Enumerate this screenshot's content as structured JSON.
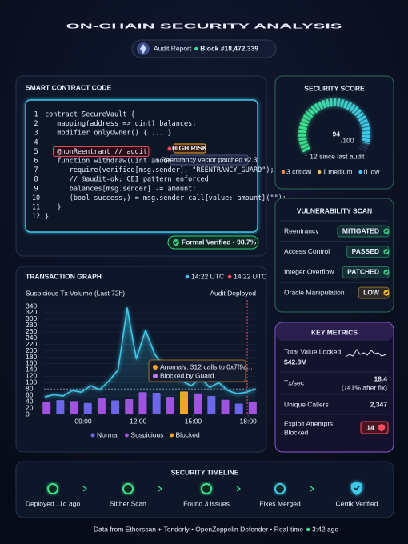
{
  "header": {
    "title": "ON-CHAIN SECURITY ANALYSIS",
    "badge": "Audit Report",
    "block": "Block #18,472,339"
  },
  "code": {
    "title": "SMART CONTRACT CODE",
    "lines": [
      {
        "number": 1,
        "text": "contract SecureVault {"
      },
      {
        "number": 2,
        "text": "   mapping(address => uint) balances;"
      },
      {
        "number": 3,
        "text": "   modifier onlyOwner() { ... }"
      },
      {
        "number": 4
      },
      {
        "number": 5,
        "text": "   @nonReentrant // audit"
      },
      {
        "number": 6,
        "text": "   function withdraw(uint amount) external {"
      },
      {
        "number": 7,
        "text": "      require(verified[msg.sender], \"REENTRANCY_GUARD\");"
      },
      {
        "number": 8,
        "text": "      // @audit-ok: CEI pattern enforced"
      },
      {
        "number": 9,
        "text": "      balances[msg.sender] -= amount;"
      },
      {
        "number": 10,
        "text": "      (bool success,) = msg.sender.call{value: amount}(\"\");"
      },
      {
        "number": 11,
        "text": "   }"
      },
      {
        "number": 12,
        "text": "}"
      }
    ],
    "risk_badge": "HIGH RISK",
    "risk_note": "Reentrancy vector patched v2.3",
    "verified": "Formal Verified • 98.7%"
  },
  "security_score": {
    "title": "SECURITY SCORE",
    "score": 94,
    "max": {
      "value": 100,
      "label": "/100"
    },
    "change": "↑ 12 since last audit",
    "severity": [
      {
        "label": "3 critical",
        "color": "#ff8a3d"
      },
      {
        "label": "1 medium",
        "color": "#f5c542"
      },
      {
        "label": "0 low",
        "color": "#4fc3f7"
      }
    ]
  },
  "vulnerability_scan": {
    "title": "VULNERABILITY SCAN",
    "rows": [
      {
        "name": "Reentrancy",
        "status": "MITIGATED",
        "color": "#35d07f"
      },
      {
        "name": "Access Control",
        "status": "PASSED",
        "color": "#35d07f"
      },
      {
        "name": "Integer Overflow",
        "status": "PATCHED",
        "color": "#35d07f"
      },
      {
        "name": "Oracle Manipulation",
        "status": "LOW",
        "color": "#f5b82e"
      }
    ]
  },
  "key_metrics": {
    "title": "KEY METRICS",
    "rows": [
      {
        "label": "Total Value Locked",
        "value": "$42.8M"
      },
      {
        "label": "Tx/sec",
        "value": "18.4",
        "note": "(↓41% after fix)"
      },
      {
        "label": "Unique Callers",
        "value": "2,347"
      },
      {
        "label_lines": [
          "Exploit Attempts",
          "Blocked"
        ],
        "value": "14"
      }
    ]
  },
  "chart_data": {
    "type": "combo",
    "title": "TRANSACTION GRAPH",
    "subtitle": "Suspicious Tx Volume (Last 72h)",
    "status_labels": [
      {
        "text": "14:22 UTC",
        "color": "#3ec7e8"
      },
      {
        "text": "14:22 UTC",
        "color": "#ff4d5e"
      }
    ],
    "xlim": [
      6.86,
      18.43
    ],
    "xticks": [
      {
        "value": 9,
        "label": "09:00"
      },
      {
        "value": 12,
        "label": "12:00"
      },
      {
        "value": 15,
        "label": "15:00"
      },
      {
        "value": 18,
        "label": "18:00"
      }
    ],
    "ylim": [
      0,
      340
    ],
    "yticks": [
      0,
      20,
      40,
      60,
      80,
      100,
      120,
      140,
      160,
      180,
      200,
      220,
      240,
      260,
      280,
      300,
      320,
      340
    ],
    "grid": true,
    "threshold": 80,
    "audit_marker": {
      "text": "Audit Deployed",
      "x": 17.95
    },
    "anomaly": {
      "text": "Anomaly: 312 calls to 0x7f9a...",
      "note": "Blocked by Guard"
    },
    "series": [
      {
        "name": "Normal",
        "type": "bar",
        "color": "#6f63e8",
        "x": [
          7.75,
          9.25,
          10.75,
          13.0,
          16.0,
          17.5
        ],
        "values": [
          45,
          36,
          44,
          68,
          58,
          34
        ]
      },
      {
        "name": "Suspicious",
        "type": "bar",
        "color": "#a24fe0",
        "x": [
          7.0,
          8.5,
          10.0,
          11.5,
          12.25,
          13.75,
          15.25,
          16.75,
          18.25
        ],
        "values": [
          38,
          42,
          52,
          48,
          70,
          55,
          66,
          46,
          40
        ]
      },
      {
        "name": "Blocked",
        "type": "bar",
        "color": "#f5a524",
        "x": [
          14.5
        ],
        "values": [
          72
        ]
      },
      {
        "type": "line",
        "color": "#3ec7e8",
        "x": [
          6.9,
          7.4,
          7.9,
          8.4,
          8.9,
          9.4,
          9.9,
          10.4,
          10.9,
          11.4,
          11.9,
          12.4,
          12.9,
          13.4,
          13.9,
          14.4,
          14.9,
          15.4,
          15.9,
          16.4,
          16.9,
          17.4,
          17.9,
          18.4
        ],
        "values": [
          55,
          62,
          58,
          75,
          70,
          90,
          78,
          105,
          140,
          335,
          175,
          265,
          190,
          150,
          120,
          105,
          90,
          115,
          85,
          100,
          75,
          65,
          70,
          80
        ]
      }
    ]
  },
  "timeline": {
    "title": "SECURITY TIMELINE",
    "steps": [
      "Deployed 11d ago",
      "Slither Scan",
      "Found 3 issues",
      "Fixes Merged",
      "Certik Verified"
    ]
  },
  "footer": {
    "text": "Data from Etherscan + Tenderly • OpenZeppelin Defender • Real-time",
    "updated": "3:42 ago"
  }
}
